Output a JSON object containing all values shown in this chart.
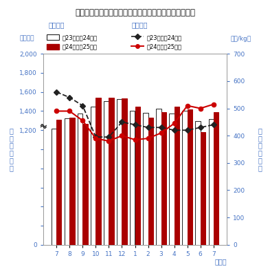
{
  "title": "図１　豚と畜頭数及び卸売価格（省令）の推移（全国）",
  "months": [
    "7",
    "8",
    "9",
    "10",
    "11",
    "12",
    "1",
    "2",
    "3",
    "4",
    "5",
    "6",
    "7"
  ],
  "bar_prev": [
    1215,
    1325,
    1375,
    1445,
    1505,
    1525,
    1400,
    1380,
    1425,
    1375,
    1400,
    1295,
    1315
  ],
  "bar_curr": [
    1310,
    1335,
    1270,
    1540,
    1540,
    1530,
    1450,
    1330,
    1390,
    1450,
    1420,
    1180,
    1390
  ],
  "line_price_prev": [
    560,
    540,
    510,
    395,
    395,
    450,
    440,
    430,
    430,
    420,
    420,
    430,
    440
  ],
  "line_price_curr": [
    490,
    490,
    455,
    390,
    380,
    400,
    385,
    390,
    410,
    445,
    510,
    500,
    515
  ],
  "bar_prev_color": "white",
  "bar_prev_edge": "#222222",
  "bar_curr_color": "#aa0000",
  "line_prev_color": "#222222",
  "line_curr_color": "#cc0000",
  "left_ylim": [
    0,
    2000
  ],
  "right_ylim": [
    0,
    700
  ],
  "left_yticks": [
    0,
    200,
    400,
    600,
    800,
    1000,
    1200,
    1400,
    1600,
    1800,
    2000
  ],
  "right_yticks": [
    0,
    100,
    200,
    300,
    400,
    500,
    600,
    700
  ],
  "left_ytick_labels": [
    "0",
    "",
    "",
    "",
    "",
    "",
    "1,200",
    "1,400",
    "1,600",
    "1,800",
    "2,000"
  ],
  "right_ytick_labels": [
    "0",
    "100",
    "200",
    "300",
    "400",
    "500",
    "600",
    "700"
  ],
  "xlabel": "（月）",
  "legend_bar_label1": "平23．７～24．７",
  "legend_bar_label2": "平24．７～25．７",
  "legend_line_label1": "平23．７～24．７",
  "legend_line_label2": "平24．７～25．７",
  "left_group_label": "と畜頭数",
  "right_group_label": "卸売価格",
  "left_unit": "（千頭）",
  "right_unit": "（円/kg）",
  "background_color": "#ffffff",
  "title_color": "#111111",
  "label_color": "#4472c4",
  "tick_color": "#4472c4"
}
